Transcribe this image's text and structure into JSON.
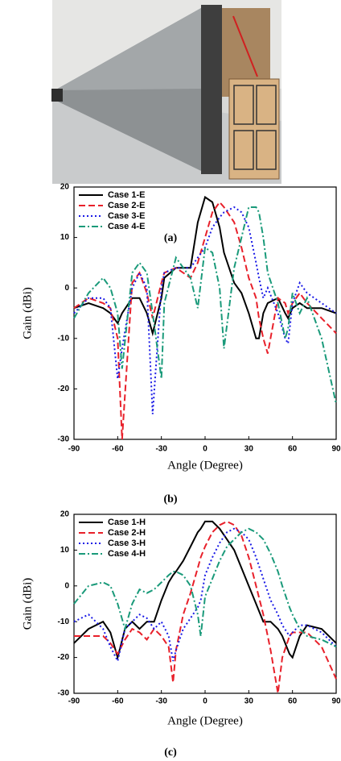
{
  "photo_caption": "(a)",
  "chart_data": [
    {
      "type": "line",
      "caption": "(b)",
      "x_label": "Angle (Degree)",
      "y_label": "Gain (dBi)",
      "xlim": [
        -90,
        90
      ],
      "ylim": [
        -30,
        20
      ],
      "xticks": [
        -90,
        -60,
        -30,
        0,
        30,
        60,
        90
      ],
      "yticks": [
        -30,
        -20,
        -10,
        0,
        10,
        20
      ],
      "legend": "upper left",
      "x": [
        -90,
        -80,
        -70,
        -65,
        -60,
        -57,
        -50,
        -45,
        -40,
        -36,
        -30,
        -28,
        -20,
        -10,
        -5,
        0,
        5,
        10,
        13,
        20,
        25,
        30,
        35,
        37,
        40,
        43,
        50,
        55,
        57,
        60,
        65,
        70,
        80,
        90
      ],
      "series": [
        {
          "name": "Case 1-E",
          "color": "#000000",
          "dash": "solid",
          "values": [
            -4,
            -3,
            -4,
            -5,
            -7,
            -5,
            -2,
            -2,
            -5,
            -9,
            -2,
            2,
            4,
            4,
            13,
            18,
            17,
            12,
            7,
            1,
            -1,
            -5,
            -10,
            -10,
            -5,
            -3,
            -2,
            -5,
            -6,
            -4,
            -3,
            -4,
            -4,
            -5
          ]
        },
        {
          "name": "Case 2-E",
          "color": "#e8202a",
          "dash": "dash",
          "values": [
            -4,
            -2,
            -3,
            -4,
            -10,
            -30,
            1,
            3,
            -1,
            -6,
            1,
            3,
            4,
            2,
            5,
            10,
            15,
            17,
            16,
            13,
            8,
            2,
            -2,
            -6,
            -10,
            -13,
            -2,
            -3,
            -5,
            -3,
            -1,
            -3,
            -6,
            -9
          ]
        },
        {
          "name": "Case 3-E",
          "color": "#1a1ae6",
          "dash": "dot",
          "values": [
            -5,
            -2,
            -2,
            -4,
            -18,
            -12,
            0,
            3,
            0,
            -25,
            0,
            3,
            4,
            4,
            6,
            8,
            12,
            14,
            15,
            16,
            15,
            12,
            5,
            2,
            -2,
            0,
            -5,
            -10,
            -11,
            -3,
            1,
            -1,
            -3,
            -5
          ]
        },
        {
          "name": "Case 4-E",
          "color": "#1a9a7a",
          "dash": "dashdot",
          "values": [
            -6,
            -1,
            2,
            0,
            -5,
            -16,
            3,
            5,
            3,
            -5,
            -18,
            -3,
            6,
            2,
            -4,
            8,
            7,
            0,
            -12,
            4,
            10,
            16,
            16,
            15,
            10,
            3,
            -3,
            -10,
            -8,
            -1,
            -5,
            -2,
            -10,
            -23
          ]
        }
      ]
    },
    {
      "type": "line",
      "caption": "(c)",
      "x_label": "Angle (Degree)",
      "y_label": "Gain (dBi)",
      "xlim": [
        -90,
        90
      ],
      "ylim": [
        -30,
        20
      ],
      "xticks": [
        -90,
        -60,
        -30,
        0,
        30,
        60,
        90
      ],
      "yticks": [
        -30,
        -20,
        -10,
        0,
        10,
        20
      ],
      "legend": "upper left",
      "x": [
        -90,
        -80,
        -70,
        -65,
        -60,
        -55,
        -50,
        -45,
        -40,
        -35,
        -30,
        -25,
        -22,
        -20,
        -15,
        -10,
        -5,
        -3,
        0,
        5,
        10,
        15,
        20,
        25,
        30,
        35,
        40,
        45,
        50,
        53,
        58,
        60,
        65,
        70,
        80,
        90
      ],
      "series": [
        {
          "name": "Case 1-H",
          "color": "#000000",
          "dash": "solid",
          "values": [
            -16,
            -12,
            -10,
            -13,
            -20,
            -12,
            -10,
            -12,
            -10,
            -10,
            -4,
            1,
            3,
            4,
            7,
            11,
            15,
            16,
            18,
            18,
            16,
            13,
            10,
            5,
            0,
            -5,
            -10,
            -10,
            -12,
            -14,
            -19,
            -20,
            -14,
            -11,
            -12,
            -16
          ]
        },
        {
          "name": "Case 2-H",
          "color": "#e8202a",
          "dash": "dash",
          "values": [
            -14,
            -14,
            -14,
            -16,
            -19,
            -15,
            -12,
            -13,
            -15,
            -12,
            -14,
            -17,
            -27,
            -18,
            -8,
            -2,
            5,
            8,
            11,
            15,
            17,
            18,
            17,
            14,
            8,
            0,
            -8,
            -18,
            -30,
            -20,
            -14,
            -13,
            -13,
            -13,
            -17,
            -26
          ]
        },
        {
          "name": "Case 3-H",
          "color": "#1a1ae6",
          "dash": "dot",
          "values": [
            -10,
            -8,
            -12,
            -17,
            -21,
            -12,
            -10,
            -8,
            -9,
            -12,
            -10,
            -14,
            -21,
            -18,
            -12,
            -9,
            -6,
            -4,
            3,
            8,
            12,
            15,
            16,
            15,
            13,
            8,
            2,
            -4,
            -8,
            -11,
            -14,
            -13,
            -11,
            -11,
            -13,
            -17
          ]
        },
        {
          "name": "Case 4-H",
          "color": "#1a9a7a",
          "dash": "dashdot",
          "values": [
            -5,
            0,
            1,
            0,
            -5,
            -12,
            -5,
            -1,
            -2,
            -1,
            1,
            3,
            4,
            4,
            3,
            0,
            -8,
            -14,
            -3,
            2,
            7,
            11,
            13,
            15,
            16,
            15,
            13,
            9,
            4,
            0,
            -6,
            -8,
            -12,
            -14,
            -15,
            -17
          ]
        }
      ]
    }
  ]
}
